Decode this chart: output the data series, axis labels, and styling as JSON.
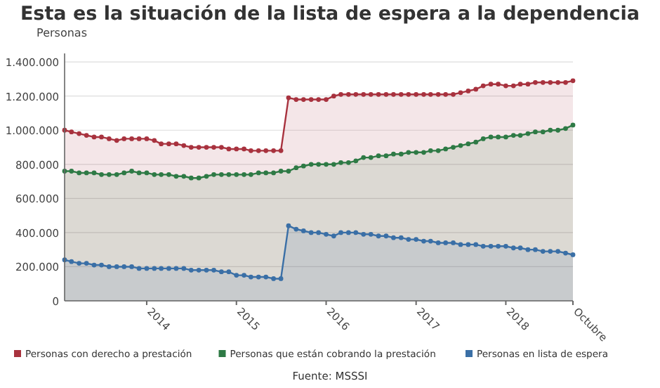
{
  "chart_data": {
    "type": "area",
    "title": "Esta es la situación de la lista de espera a la dependencia",
    "ylabel": "Personas",
    "annotations": [
      "Fuente: MSSSI"
    ],
    "x": [
      "2013-02",
      "2013-03",
      "2013-04",
      "2013-05",
      "2013-06",
      "2013-07",
      "2013-08",
      "2013-09",
      "2013-10",
      "2013-11",
      "2013-12",
      "2014-01",
      "2014-02",
      "2014-03",
      "2014-04",
      "2014-05",
      "2014-06",
      "2014-07",
      "2014-08",
      "2014-09",
      "2014-10",
      "2014-11",
      "2014-12",
      "2015-01",
      "2015-02",
      "2015-03",
      "2015-04",
      "2015-05",
      "2015-06",
      "2015-07",
      "2015-08",
      "2015-09",
      "2015-10",
      "2015-11",
      "2015-12",
      "2016-01",
      "2016-02",
      "2016-03",
      "2016-04",
      "2016-05",
      "2016-06",
      "2016-07",
      "2016-08",
      "2016-09",
      "2016-10",
      "2016-11",
      "2016-12",
      "2017-01",
      "2017-02",
      "2017-03",
      "2017-04",
      "2017-05",
      "2017-06",
      "2017-07",
      "2017-08",
      "2017-09",
      "2017-10",
      "2017-11",
      "2017-12",
      "2018-01",
      "2018-02",
      "2018-03",
      "2018-04",
      "2018-05",
      "2018-06",
      "2018-07",
      "2018-08",
      "2018-09",
      "2018-10"
    ],
    "series": [
      {
        "name": "Personas con derecho a prestación",
        "color": "#a8323e",
        "values": [
          1000000,
          990000,
          980000,
          970000,
          960000,
          960000,
          950000,
          940000,
          950000,
          950000,
          950000,
          950000,
          940000,
          920000,
          920000,
          920000,
          910000,
          900000,
          900000,
          900000,
          900000,
          900000,
          890000,
          890000,
          890000,
          880000,
          880000,
          880000,
          880000,
          880000,
          1190000,
          1180000,
          1180000,
          1180000,
          1180000,
          1180000,
          1200000,
          1210000,
          1210000,
          1210000,
          1210000,
          1210000,
          1210000,
          1210000,
          1210000,
          1210000,
          1210000,
          1210000,
          1210000,
          1210000,
          1210000,
          1210000,
          1210000,
          1220000,
          1230000,
          1240000,
          1260000,
          1270000,
          1270000,
          1260000,
          1260000,
          1270000,
          1270000,
          1280000,
          1280000,
          1280000,
          1280000,
          1280000,
          1290000
        ]
      },
      {
        "name": "Personas que están cobrando la prestación",
        "color": "#2e7a45",
        "values": [
          760000,
          760000,
          750000,
          750000,
          750000,
          740000,
          740000,
          740000,
          750000,
          760000,
          750000,
          750000,
          740000,
          740000,
          740000,
          730000,
          730000,
          720000,
          720000,
          730000,
          740000,
          740000,
          740000,
          740000,
          740000,
          740000,
          750000,
          750000,
          750000,
          760000,
          760000,
          780000,
          790000,
          800000,
          800000,
          800000,
          800000,
          810000,
          810000,
          820000,
          840000,
          840000,
          850000,
          850000,
          860000,
          860000,
          870000,
          870000,
          870000,
          880000,
          880000,
          890000,
          900000,
          910000,
          920000,
          930000,
          950000,
          960000,
          960000,
          960000,
          970000,
          970000,
          980000,
          990000,
          990000,
          1000000,
          1000000,
          1010000,
          1030000
        ]
      },
      {
        "name": "Personas en lista de espera",
        "color": "#3a6fa6",
        "values": [
          240000,
          230000,
          220000,
          220000,
          210000,
          210000,
          200000,
          200000,
          200000,
          200000,
          190000,
          190000,
          190000,
          190000,
          190000,
          190000,
          190000,
          180000,
          180000,
          180000,
          180000,
          170000,
          170000,
          150000,
          150000,
          140000,
          140000,
          140000,
          130000,
          130000,
          440000,
          420000,
          410000,
          400000,
          400000,
          390000,
          380000,
          400000,
          400000,
          400000,
          390000,
          390000,
          380000,
          380000,
          370000,
          370000,
          360000,
          360000,
          350000,
          350000,
          340000,
          340000,
          340000,
          330000,
          330000,
          330000,
          320000,
          320000,
          320000,
          320000,
          310000,
          310000,
          300000,
          300000,
          290000,
          290000,
          290000,
          280000,
          270000
        ]
      }
    ],
    "xlim": [
      "2013-02",
      "2018-10"
    ],
    "ylim": [
      0,
      1450000
    ],
    "yticks": [
      0,
      {
        "value": 200000,
        "label": "200.000"
      },
      {
        "value": 400000,
        "label": "400.000"
      },
      {
        "value": 600000,
        "label": "600.000"
      },
      {
        "value": 800000,
        "label": "800.000"
      },
      {
        "value": 1000000,
        "label": "1.000.000"
      },
      {
        "value": 1200000,
        "label": "1.200.000"
      },
      {
        "value": 1400000,
        "label": "1.400.000"
      }
    ],
    "xticks": [
      {
        "value": "2014-01",
        "label": "2014"
      },
      {
        "value": "2015-01",
        "label": "2015"
      },
      {
        "value": "2016-01",
        "label": "2016"
      },
      {
        "value": "2017-01",
        "label": "2017"
      },
      {
        "value": "2018-01",
        "label": "2018"
      },
      {
        "value": "2018-10",
        "label": "Octubre"
      }
    ],
    "grid": "y",
    "marker": "circle",
    "legend": "bottom"
  }
}
